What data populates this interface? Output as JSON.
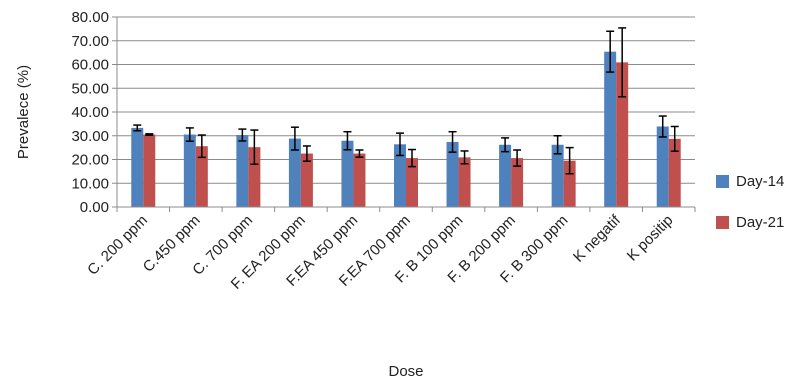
{
  "chart_data": {
    "type": "bar",
    "title": "",
    "xlabel": "Dose",
    "ylabel": "Prevalece  (%)",
    "ylim": [
      0,
      80
    ],
    "yticks": [
      "0.00",
      "10.00",
      "20.00",
      "30.00",
      "40.00",
      "50.00",
      "60.00",
      "70.00",
      "80.00"
    ],
    "grid": true,
    "legend_position": "right",
    "categories": [
      "C. 200 ppm",
      "C.450 ppm",
      "C. 700 ppm",
      "F. EA 200 ppm",
      "F.EA 450 ppm",
      "F.EA 700 ppm",
      "F. B 100 ppm",
      "F. B 200 ppm",
      "F. B 300 ppm",
      "K negatif",
      "K positip"
    ],
    "series": [
      {
        "name": "Day-14",
        "color": "#4F81BD",
        "values": [
          33.3,
          30.5,
          30.3,
          28.8,
          27.9,
          26.4,
          27.4,
          26.2,
          26.2,
          65.4,
          33.9
        ],
        "errors": [
          1.2,
          2.8,
          2.5,
          4.8,
          3.8,
          4.7,
          4.3,
          2.9,
          3.8,
          8.6,
          4.4
        ]
      },
      {
        "name": "Day-21",
        "color": "#C0504D",
        "values": [
          30.5,
          25.6,
          25.2,
          22.5,
          22.5,
          20.6,
          20.9,
          20.6,
          19.5,
          60.9,
          28.7
        ],
        "errors": [
          0.3,
          4.7,
          7.2,
          3.2,
          1.5,
          3.6,
          2.7,
          3.4,
          5.5,
          14.5,
          5.2
        ]
      }
    ]
  }
}
